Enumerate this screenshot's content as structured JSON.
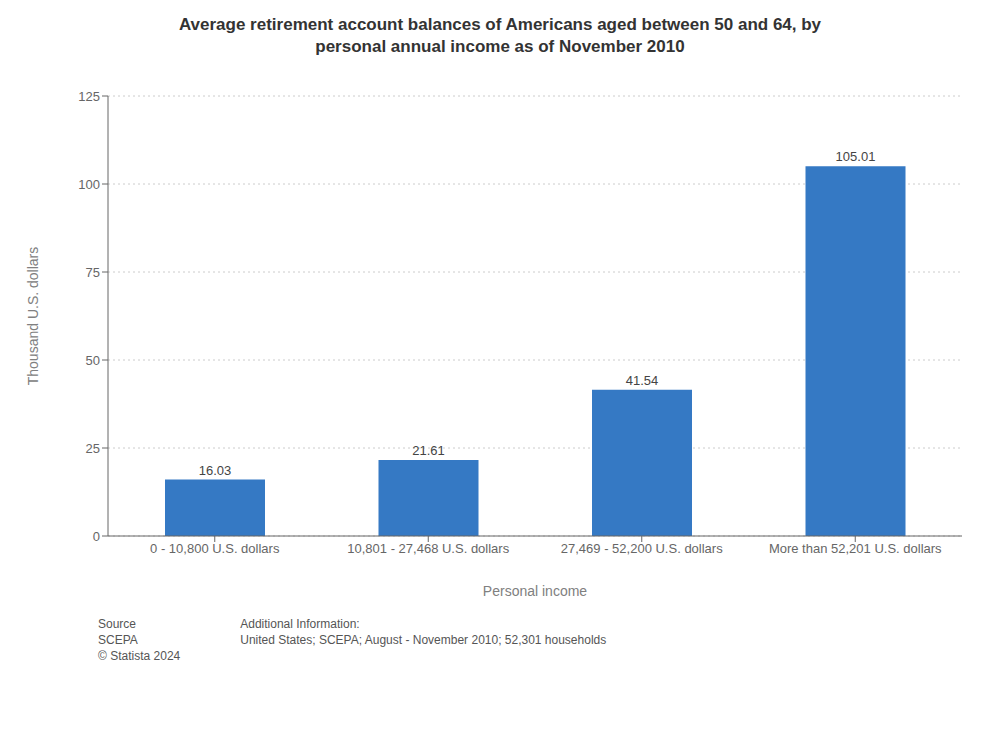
{
  "chart_data": {
    "type": "bar",
    "title": "Average retirement account balances of Americans aged between 50 and 64, by\npersonal annual income as of November 2010",
    "categories": [
      "0 - 10,800 U.S. dollars",
      "10,801 - 27,468 U.S. dollars",
      "27,469 - 52,200 U.S. dollars",
      "More than 52,201 U.S. dollars"
    ],
    "values": [
      16.03,
      21.61,
      41.54,
      105.01
    ],
    "color": "#3579c4",
    "xlabel": "Personal income",
    "ylabel": "Thousand U.S. dollars",
    "ylim": [
      0,
      125
    ],
    "yticks": [
      0,
      25,
      50,
      75,
      100,
      125
    ],
    "grid": true,
    "data_labels": true,
    "annotations": [
      "Source\nSCEPA\n© Statista 2024",
      "Additional Information:\nUnited States; SCEPA; August - November 2010; 52,301 households"
    ]
  }
}
